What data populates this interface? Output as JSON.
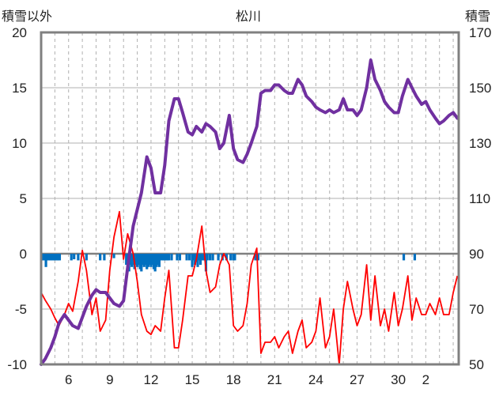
{
  "chart_data": {
    "type": "line",
    "title": "松川",
    "left_axis_label": "積雪以外",
    "right_axis_label": "積雪",
    "ylim_left": [
      -10,
      20
    ],
    "ylim_right": [
      50,
      170
    ],
    "y_ticks_left": [
      "20",
      "15",
      "10",
      "5",
      "0",
      "-5",
      "-10"
    ],
    "y_ticks_right": [
      "170",
      "150",
      "130",
      "110",
      "90",
      "70",
      "50"
    ],
    "x_tick_labels": [
      "6",
      "9",
      "12",
      "15",
      "18",
      "21",
      "24",
      "27",
      "30",
      "2"
    ],
    "grid": "vertical dashed daily lines, horizontal solid lines",
    "colors": {
      "snow": "#7030a0",
      "temperature": "#ff0000",
      "precipitation": "#0070c0",
      "zero_line": "#808080",
      "frame": "#808080"
    },
    "series": [
      {
        "axis": "right",
        "color": "#7030a0",
        "x": [
          4.0,
          4.3,
          4.7,
          5.0,
          5.3,
          5.7,
          6.0,
          6.3,
          6.7,
          7.0,
          7.3,
          7.7,
          8.0,
          8.3,
          8.7,
          9.0,
          9.3,
          9.7,
          10.0,
          10.3,
          10.7,
          11.0,
          11.3,
          11.7,
          12.0,
          12.3,
          12.7,
          13.0,
          13.3,
          13.7,
          14.0,
          14.3,
          14.7,
          15.0,
          15.3,
          15.7,
          16.0,
          16.3,
          16.7,
          17.0,
          17.3,
          17.7,
          18.0,
          18.3,
          18.7,
          19.0,
          19.3,
          19.7,
          20.0,
          20.3,
          20.7,
          21.0,
          21.3,
          21.7,
          22.0,
          22.3,
          22.7,
          23.0,
          23.3,
          23.7,
          24.0,
          24.3,
          24.7,
          25.0,
          25.3,
          25.7,
          26.0,
          26.3,
          26.7,
          27.0,
          27.3,
          27.7,
          28.0,
          28.3,
          28.7,
          29.0,
          29.3,
          29.7,
          30.0,
          30.3,
          30.7,
          31.0,
          31.3,
          31.7,
          32.0,
          32.3,
          32.7,
          33.0,
          33.3,
          33.7,
          34.0,
          34.3
        ],
        "y": [
          50,
          52,
          56,
          60,
          65,
          68,
          66,
          64,
          63,
          67,
          71,
          75,
          77,
          76,
          76,
          74,
          72,
          71,
          73,
          85,
          100,
          106,
          112,
          125,
          121,
          112,
          112,
          122,
          138,
          146,
          146,
          141,
          134,
          133,
          136,
          134,
          137,
          136,
          134,
          128,
          130,
          140,
          128,
          124,
          123,
          126,
          130,
          136,
          148,
          149,
          149,
          151,
          151,
          149,
          148,
          148,
          153,
          151,
          147,
          145,
          143,
          142,
          141,
          142,
          141,
          142,
          146,
          142,
          142,
          140,
          142,
          150,
          160,
          153,
          149,
          145,
          143,
          141,
          141,
          147,
          153,
          150,
          147,
          144,
          145,
          142,
          139,
          137,
          138,
          140,
          141,
          139
        ],
        "name": ""
      },
      {
        "axis": "left",
        "color": "#ff0000",
        "x": [
          4.0,
          4.3,
          4.7,
          5.0,
          5.3,
          5.7,
          6.0,
          6.3,
          6.7,
          7.0,
          7.3,
          7.7,
          8.0,
          8.3,
          8.7,
          9.0,
          9.3,
          9.7,
          10.0,
          10.3,
          10.7,
          11.0,
          11.3,
          11.7,
          12.0,
          12.3,
          12.7,
          13.0,
          13.3,
          13.7,
          14.0,
          14.3,
          14.7,
          15.0,
          15.3,
          15.7,
          16.0,
          16.3,
          16.7,
          17.0,
          17.3,
          17.7,
          18.0,
          18.3,
          18.7,
          19.0,
          19.3,
          19.7,
          20.0,
          20.3,
          20.7,
          21.0,
          21.3,
          21.7,
          22.0,
          22.3,
          22.7,
          23.0,
          23.3,
          23.7,
          24.0,
          24.3,
          24.7,
          25.0,
          25.3,
          25.7,
          26.0,
          26.3,
          26.7,
          27.0,
          27.3,
          27.7,
          28.0,
          28.3,
          28.7,
          29.0,
          29.3,
          29.7,
          30.0,
          30.3,
          30.7,
          31.0,
          31.3,
          31.7,
          32.0,
          32.3,
          32.7,
          33.0,
          33.3,
          33.7,
          34.0,
          34.3
        ],
        "y": [
          -3.5,
          -4.2,
          -5.0,
          -5.8,
          -6.5,
          -5.5,
          -4.5,
          -5.2,
          -2.5,
          0.3,
          -1.5,
          -5.5,
          -4.0,
          -7.0,
          -6.0,
          -1.5,
          1.5,
          3.8,
          -0.5,
          1.8,
          0.0,
          -2.5,
          -5.5,
          -7.0,
          -7.3,
          -6.5,
          -7.0,
          -4.0,
          -1.5,
          -8.5,
          -8.5,
          -6.0,
          -2.0,
          -2.0,
          -0.5,
          2.5,
          -1.5,
          -3.5,
          -3.0,
          -1.0,
          0.0,
          -1.0,
          -6.5,
          -7.0,
          -6.5,
          -4.5,
          -1.0,
          0.5,
          -9.0,
          -8.0,
          -8.0,
          -7.5,
          -8.5,
          -7.5,
          -7.0,
          -9.0,
          -7.0,
          -6.0,
          -8.5,
          -8.0,
          -7.0,
          -4.0,
          -8.5,
          -7.5,
          -5.0,
          -10.0,
          -5.0,
          -2.5,
          -5.0,
          -6.5,
          -5.5,
          -1.0,
          -6.0,
          -2.0,
          -6.5,
          -5.0,
          -7.0,
          -3.5,
          -6.5,
          -5.0,
          -2.0,
          -6.0,
          -4.0,
          -5.5,
          -5.5,
          -4.5,
          -5.5,
          -4.0,
          -5.5,
          -5.5,
          -3.5,
          -2.0
        ],
        "name": ""
      },
      {
        "axis": "left",
        "type": "bar",
        "color": "#0070c0",
        "x": [
          4.05,
          4.15,
          4.25,
          4.35,
          4.45,
          4.55,
          4.65,
          4.75,
          4.85,
          4.95,
          5.05,
          5.15,
          5.25,
          5.35,
          6.2,
          6.4,
          6.7,
          7.3,
          8.3,
          8.6,
          9.3,
          10.2,
          10.3,
          10.4,
          10.5,
          10.6,
          10.7,
          10.8,
          10.9,
          11.0,
          11.1,
          11.2,
          11.3,
          11.4,
          11.5,
          11.6,
          11.7,
          11.8,
          11.9,
          12.0,
          12.1,
          12.2,
          12.3,
          12.4,
          12.5,
          12.6,
          12.7,
          12.8,
          12.9,
          13.0,
          13.1,
          13.2,
          13.3,
          13.5,
          13.9,
          14.1,
          14.6,
          14.8,
          15.0,
          15.1,
          15.2,
          15.3,
          15.4,
          15.5,
          15.6,
          15.7,
          15.8,
          15.9,
          16.0,
          16.1,
          16.3,
          16.5,
          16.9,
          17.2,
          17.5,
          17.8,
          18.0,
          18.1,
          19.6,
          19.7,
          19.8,
          30.4,
          31.2
        ],
        "y": [
          -0.6,
          -0.6,
          -0.6,
          -1.2,
          -0.6,
          -0.6,
          -0.6,
          -0.6,
          -0.6,
          -0.6,
          -0.6,
          -0.6,
          -0.6,
          -0.6,
          -0.6,
          -0.5,
          -0.6,
          -0.6,
          -0.6,
          -0.6,
          -0.4,
          -1.0,
          -1.2,
          -1.6,
          -1.0,
          -1.2,
          -1.0,
          -1.4,
          -1.0,
          -1.2,
          -1.0,
          -1.4,
          -1.6,
          -1.0,
          -1.2,
          -1.0,
          -1.4,
          -1.2,
          -1.0,
          -1.2,
          -1.0,
          -1.4,
          -1.6,
          -1.2,
          -1.0,
          -1.2,
          -0.6,
          -0.6,
          -0.6,
          -0.6,
          -0.6,
          -0.6,
          -0.6,
          -0.6,
          -0.6,
          -0.6,
          -0.6,
          -0.6,
          -1.2,
          -0.6,
          -1.0,
          -0.6,
          -1.2,
          -0.6,
          -1.0,
          -0.6,
          -0.6,
          -0.6,
          -1.6,
          -0.6,
          -0.6,
          -0.6,
          -0.6,
          -0.6,
          -0.6,
          -0.6,
          -0.6,
          -0.6,
          -0.6,
          -0.6,
          -0.6,
          -0.6,
          -0.6
        ],
        "name": ""
      }
    ]
  }
}
